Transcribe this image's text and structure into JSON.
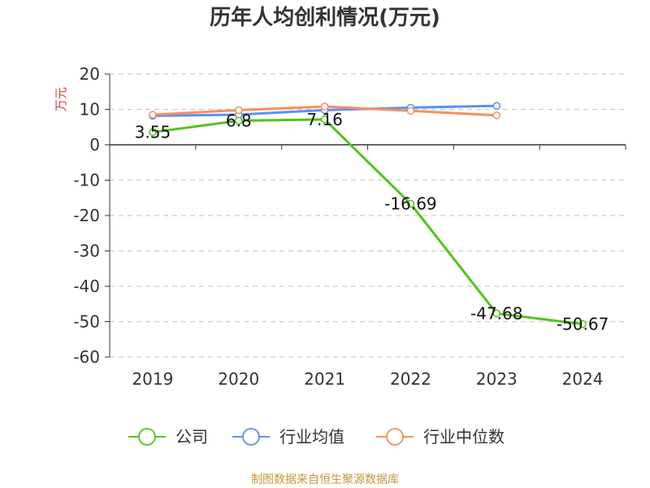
{
  "chart_data": {
    "type": "line",
    "title": "历年人均创利情况(万元)",
    "ylabel": "万元",
    "xlabel": "",
    "categories": [
      "2019",
      "2020",
      "2021",
      "2022",
      "2023",
      "2024"
    ],
    "ylim": [
      -60,
      20
    ],
    "yticks": [
      20,
      10,
      0,
      -10,
      -20,
      -30,
      -40,
      -50,
      -60
    ],
    "grid": true,
    "legend_position": "bottom",
    "series": [
      {
        "name": "公司",
        "color": "#52c41a",
        "values": [
          3.55,
          6.8,
          7.16,
          -16.69,
          -47.68,
          -50.67
        ],
        "labels": [
          "3.55",
          "6.8",
          "7.16",
          "-16.69",
          "-47.68",
          "-50.67"
        ]
      },
      {
        "name": "行业均值",
        "color": "#5b8ff9",
        "values": [
          8.2,
          8.5,
          9.8,
          10.5,
          11.0,
          null
        ]
      },
      {
        "name": "行业中位数",
        "color": "#f6905c",
        "values": [
          8.5,
          9.8,
          10.8,
          9.6,
          8.3,
          null
        ]
      }
    ]
  },
  "source": "制图数据来自恒生聚源数据库"
}
